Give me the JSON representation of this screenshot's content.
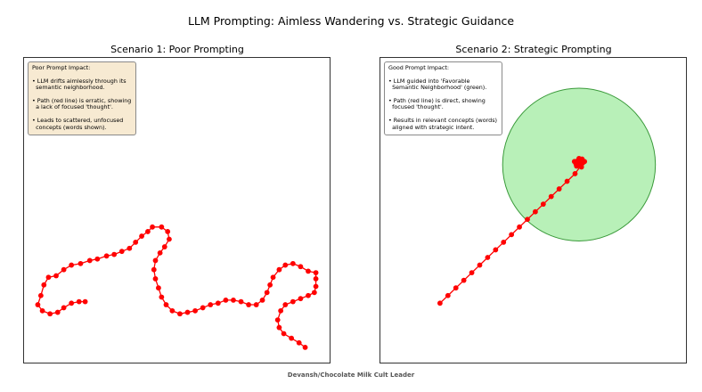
{
  "figure": {
    "suptitle": "LLM Prompting: Aimless Wandering vs. Strategic Guidance",
    "footer": "Devansh/Chocolate Milk Cult Leader"
  },
  "chart_data": [
    {
      "type": "scatter",
      "title": "Scenario 1: Poor Prompting",
      "xlim": [
        0,
        10
      ],
      "ylim": [
        0,
        10
      ],
      "grid": false,
      "path_color": "#ff0000",
      "annotation": {
        "heading": "Poor Prompt Impact:",
        "bullets": [
          "• LLM drifts aimlessly through its\n  semantic neighborhood.",
          "• Path (red line) is erratic, showing\n  a lack of focused 'thought'.",
          "• Leads to scattered, unfocused\n  concepts (words shown)."
        ],
        "background": "#f7ead2",
        "placement": "top-left"
      },
      "path": [
        [
          2.0,
          2.0
        ],
        [
          1.8,
          2.0
        ],
        [
          1.55,
          1.95
        ],
        [
          1.3,
          1.8
        ],
        [
          1.1,
          1.65
        ],
        [
          0.85,
          1.6
        ],
        [
          0.6,
          1.7
        ],
        [
          0.45,
          1.9
        ],
        [
          0.55,
          2.2
        ],
        [
          0.65,
          2.55
        ],
        [
          0.8,
          2.8
        ],
        [
          1.05,
          2.85
        ],
        [
          1.3,
          3.05
        ],
        [
          1.55,
          3.2
        ],
        [
          1.85,
          3.25
        ],
        [
          2.15,
          3.35
        ],
        [
          2.4,
          3.4
        ],
        [
          2.7,
          3.5
        ],
        [
          2.95,
          3.55
        ],
        [
          3.2,
          3.65
        ],
        [
          3.45,
          3.75
        ],
        [
          3.65,
          3.95
        ],
        [
          3.85,
          4.15
        ],
        [
          4.05,
          4.3
        ],
        [
          4.2,
          4.45
        ],
        [
          4.5,
          4.45
        ],
        [
          4.7,
          4.3
        ],
        [
          4.75,
          4.05
        ],
        [
          4.6,
          3.8
        ],
        [
          4.45,
          3.6
        ],
        [
          4.3,
          3.35
        ],
        [
          4.25,
          3.05
        ],
        [
          4.3,
          2.75
        ],
        [
          4.4,
          2.45
        ],
        [
          4.5,
          2.15
        ],
        [
          4.65,
          1.9
        ],
        [
          4.85,
          1.7
        ],
        [
          5.1,
          1.6
        ],
        [
          5.35,
          1.65
        ],
        [
          5.6,
          1.7
        ],
        [
          5.85,
          1.8
        ],
        [
          6.1,
          1.9
        ],
        [
          6.35,
          1.95
        ],
        [
          6.6,
          2.05
        ],
        [
          6.85,
          2.05
        ],
        [
          7.1,
          2.0
        ],
        [
          7.35,
          1.9
        ],
        [
          7.6,
          1.9
        ],
        [
          7.8,
          2.05
        ],
        [
          7.95,
          2.3
        ],
        [
          8.05,
          2.55
        ],
        [
          8.15,
          2.8
        ],
        [
          8.35,
          3.05
        ],
        [
          8.55,
          3.2
        ],
        [
          8.8,
          3.25
        ],
        [
          9.05,
          3.15
        ],
        [
          9.3,
          3.0
        ],
        [
          9.55,
          2.95
        ],
        [
          9.55,
          2.75
        ],
        [
          9.55,
          2.5
        ],
        [
          9.5,
          2.3
        ],
        [
          9.3,
          2.2
        ],
        [
          9.05,
          2.1
        ],
        [
          8.8,
          2.0
        ],
        [
          8.55,
          1.9
        ],
        [
          8.4,
          1.7
        ],
        [
          8.3,
          1.4
        ],
        [
          8.35,
          1.15
        ],
        [
          8.5,
          0.95
        ],
        [
          8.75,
          0.8
        ],
        [
          9.0,
          0.65
        ],
        [
          9.2,
          0.5
        ]
      ]
    },
    {
      "type": "scatter",
      "title": "Scenario 2: Strategic Prompting",
      "xlim": [
        0,
        10
      ],
      "ylim": [
        0,
        10
      ],
      "grid": false,
      "path_color": "#ff0000",
      "region": {
        "label": "Favorable Semantic Neighborhood",
        "center": [
          6.5,
          6.5
        ],
        "radius": 2.5,
        "fill": "#b8f0b8",
        "edge": "#3a9a3a"
      },
      "annotation": {
        "heading": "Good Prompt Impact:",
        "bullets": [
          "• LLM guided into 'Favorable\n  Semantic Neighborhood' (green).",
          "• Path (red line) is direct, showing\n  focused 'thought'.",
          "• Results in relevant concepts (words)\n  aligned with strategic intent."
        ],
        "background": "#ffffff",
        "placement": "top-left"
      },
      "path": [
        [
          1.95,
          1.95
        ],
        [
          2.21,
          2.2
        ],
        [
          2.47,
          2.45
        ],
        [
          2.73,
          2.7
        ],
        [
          2.99,
          2.95
        ],
        [
          3.25,
          3.2
        ],
        [
          3.51,
          3.45
        ],
        [
          3.77,
          3.7
        ],
        [
          4.03,
          3.95
        ],
        [
          4.29,
          4.2
        ],
        [
          4.55,
          4.45
        ],
        [
          4.81,
          4.7
        ],
        [
          5.07,
          4.95
        ],
        [
          5.33,
          5.2
        ],
        [
          5.59,
          5.45
        ],
        [
          5.85,
          5.7
        ],
        [
          6.11,
          5.95
        ],
        [
          6.37,
          6.2
        ],
        [
          6.55,
          6.45
        ],
        [
          6.45,
          6.62
        ],
        [
          6.6,
          6.68
        ],
        [
          6.4,
          6.52
        ],
        [
          6.62,
          6.55
        ],
        [
          6.5,
          6.7
        ],
        [
          6.35,
          6.6
        ],
        [
          6.58,
          6.42
        ],
        [
          6.68,
          6.6
        ],
        [
          6.47,
          6.5
        ],
        [
          6.55,
          6.62
        ],
        [
          6.42,
          6.45
        ]
      ]
    }
  ]
}
